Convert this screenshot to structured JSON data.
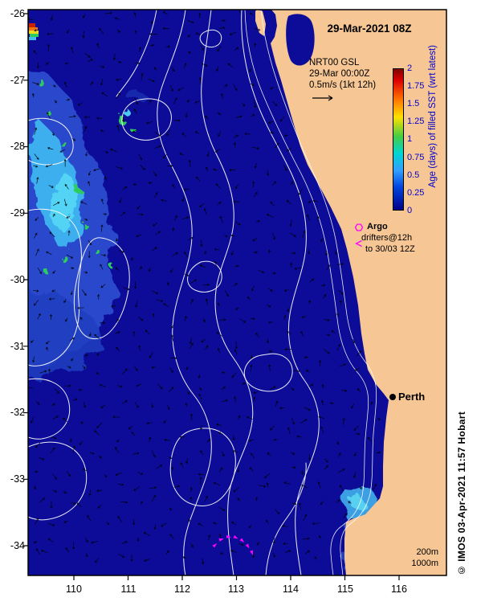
{
  "title": "29-Mar-2021 08Z",
  "legend": {
    "model": "NRT00 GSL",
    "time": "29-Mar 00:00Z",
    "scale": "0.5m/s (1kt 12h)"
  },
  "colorbar": {
    "label": "Age (days) of filled SST (wrt latest)",
    "ticks": [
      "2",
      "1.75",
      "1.5",
      "1.25",
      "1",
      "0.75",
      "0.5",
      "0.25",
      "0"
    ],
    "gradient_top_to_bottom": [
      "#7f0000",
      "#dd0000",
      "#ff7700",
      "#ffe000",
      "#44cc44",
      "#00d4d4",
      "#33a0ff",
      "#0044dd",
      "#000088"
    ],
    "gradient_stops_pct": [
      0,
      8,
      22,
      34,
      48,
      60,
      72,
      84,
      100
    ]
  },
  "overlays": {
    "argo_label": "Argo",
    "drifters_line1": "drifters@12h",
    "drifters_line2": "to 30/03 12Z"
  },
  "city_label": "Perth",
  "depth_labels": {
    "d200": "200m",
    "d1000": "1000m"
  },
  "watermark": "© IMOS 03-Apr-2021 11:57 Hobart",
  "axes": {
    "x_ticks": [
      "110",
      "111",
      "112",
      "113",
      "114",
      "115",
      "116"
    ],
    "y_ticks": [
      "-26",
      "-27",
      "-28",
      "-29",
      "-30",
      "-31",
      "-32",
      "-33",
      "-34"
    ]
  },
  "colors": {
    "ocean": "#0c0c99",
    "land": "#f6c795",
    "contour": "#ffffff",
    "marker_magenta": "#ff00ff",
    "colorbar_text": "#0000cc",
    "arrow_black": "#000000"
  }
}
